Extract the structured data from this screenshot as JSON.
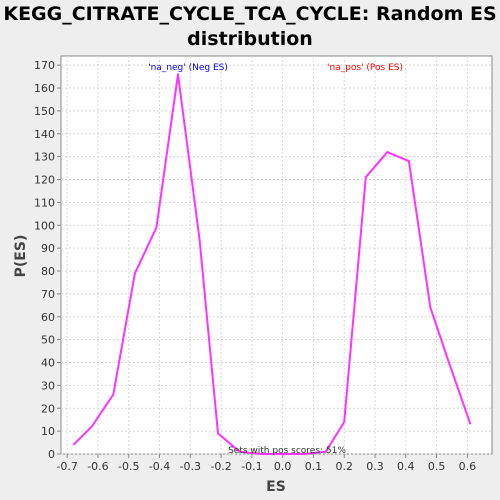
{
  "chart_data": {
    "type": "line",
    "title_line1": "KEGG_CITRATE_CYCLE_TCA_CYCLE: Random ES",
    "title_line2": "distribution",
    "xlabel": "ES",
    "ylabel": "P(ES)",
    "xlim": [
      -0.72,
      0.68
    ],
    "ylim": [
      0,
      174
    ],
    "xticks": [
      -0.7,
      -0.6,
      -0.5,
      -0.4,
      -0.3,
      -0.2,
      -0.1,
      0.0,
      0.1,
      0.2,
      0.3,
      0.4,
      0.5,
      0.6
    ],
    "xtick_labels": [
      "-0.7",
      "-0.6",
      "-0.5",
      "-0.4",
      "-0.3",
      "-0.2",
      "-0.1",
      "0.0",
      "0.1",
      "0.2",
      "0.3",
      "0.4",
      "0.5",
      "0.6"
    ],
    "yticks": [
      0,
      10,
      20,
      30,
      40,
      50,
      60,
      70,
      80,
      90,
      100,
      110,
      120,
      130,
      140,
      150,
      160,
      170
    ],
    "grid": true,
    "series": [
      {
        "name": "",
        "color": "#ff33ff",
        "x": [
          -0.68,
          -0.62,
          -0.55,
          -0.48,
          -0.41,
          -0.34,
          -0.27,
          -0.21,
          -0.14,
          -0.07,
          0.0,
          0.07,
          0.14,
          0.2,
          0.27,
          0.34,
          0.41,
          0.48,
          0.54,
          0.61
        ],
        "y": [
          4,
          12,
          26,
          79,
          99,
          166,
          94,
          9,
          1,
          0,
          0,
          0,
          1,
          14,
          121,
          132,
          128,
          64,
          40,
          13
        ]
      }
    ],
    "annotations": {
      "neg_label": "'na_neg' (Neg ES)",
      "neg_color": "#0000ff",
      "pos_label": "'na_pos' (Pos ES)",
      "pos_color": "#ff0000",
      "bottom_note": "Sets with pos scores: 51%"
    }
  }
}
